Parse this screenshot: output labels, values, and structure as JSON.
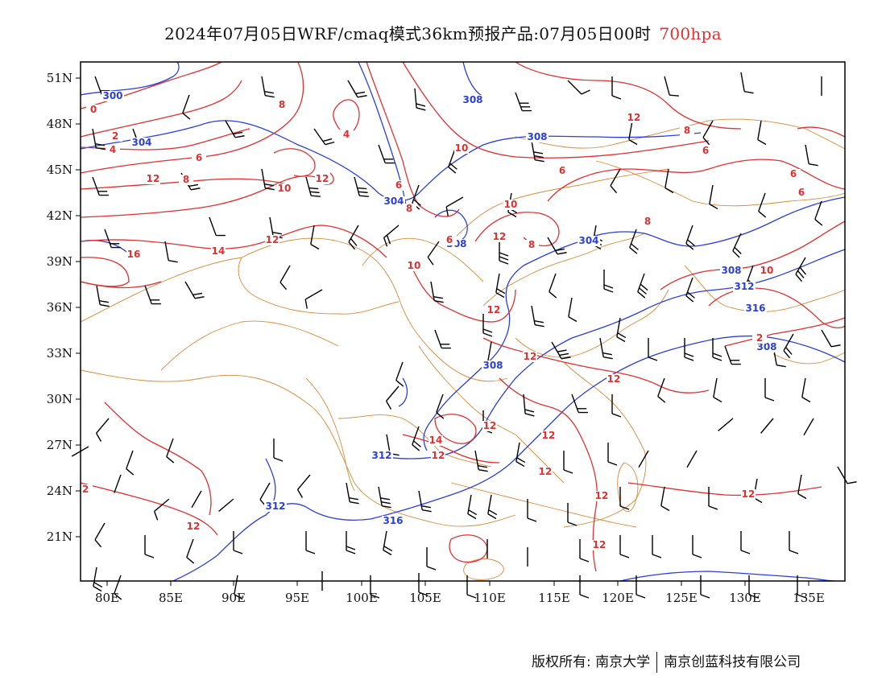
{
  "title": {
    "main": "2024年07月05日WRF/cmaq模式36km预报产品:07月05日00时",
    "level": "700hpa",
    "level_color": "#e03030"
  },
  "map": {
    "lon_ticks": [
      "80E",
      "85E",
      "90E",
      "95E",
      "100E",
      "105E",
      "110E",
      "115E",
      "120E",
      "125E",
      "130E",
      "135E"
    ],
    "lat_ticks": [
      "51N",
      "48N",
      "45N",
      "42N",
      "39N",
      "36N",
      "33N",
      "30N",
      "27N",
      "24N",
      "21N"
    ],
    "colors": {
      "height_contour": "#2a3fd8",
      "temperature_contour": "#e03030",
      "boundary": "#d98a3a",
      "wind_barb": "#000000"
    },
    "height_labels": [
      "300",
      "304",
      "308",
      "308",
      "304",
      "308",
      "304",
      "308",
      "312",
      "316",
      "308",
      "308",
      "312",
      "312",
      "316"
    ],
    "temp_labels": [
      "0",
      "2",
      "4",
      "6",
      "8",
      "4",
      "6",
      "8",
      "10",
      "6",
      "8",
      "10",
      "6",
      "8",
      "6",
      "6",
      "10",
      "12",
      "8",
      "6",
      "16",
      "14",
      "12",
      "10",
      "12",
      "8",
      "10",
      "12",
      "12",
      "12",
      "2",
      "12",
      "14",
      "12",
      "12",
      "12",
      "12",
      "12",
      "2",
      "12",
      "12",
      "12",
      "12"
    ]
  },
  "footer": {
    "copyright": "版权所有: 南京大学",
    "company": "南京创蓝科技有限公司"
  }
}
